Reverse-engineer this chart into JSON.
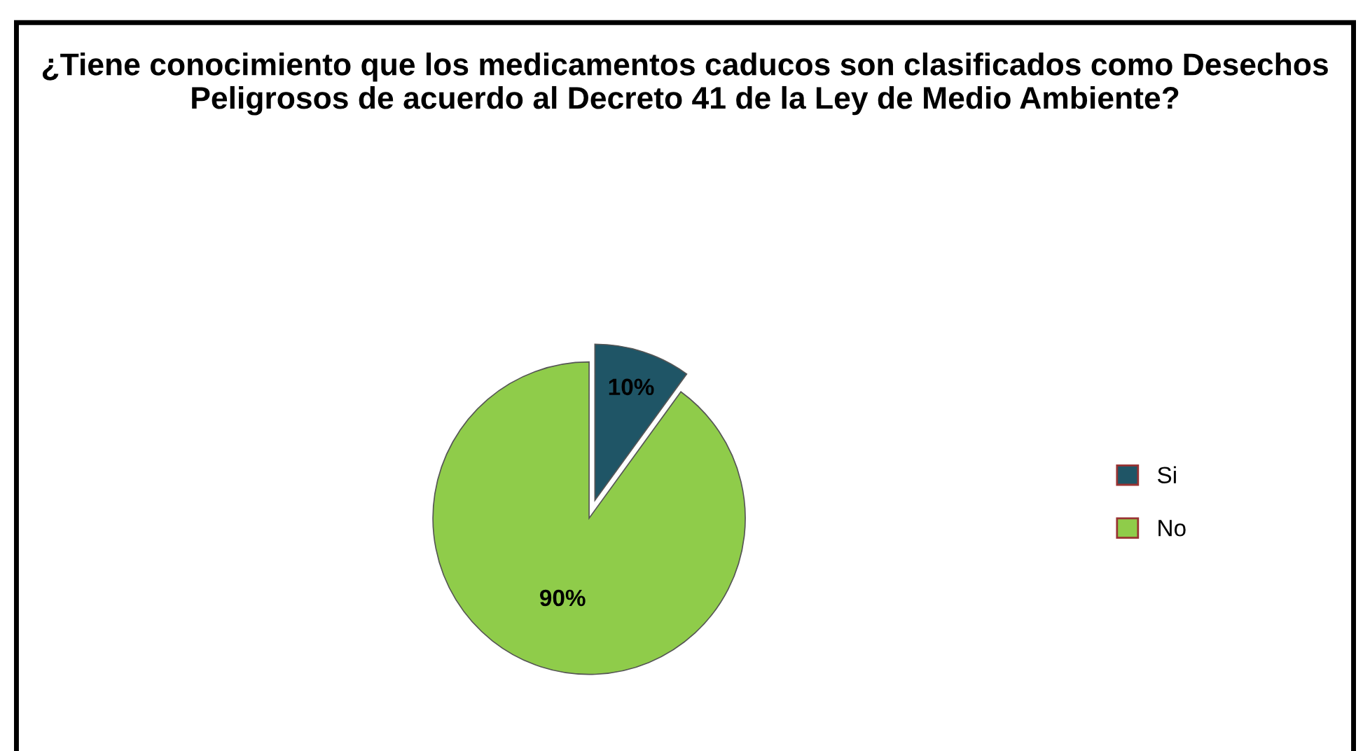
{
  "chart_data": {
    "type": "pie",
    "title": "¿Tiene conocimiento que los medicamentos caducos son clasificados como Desechos Peligrosos de acuerdo al Decreto 41 de la Ley de Medio Ambiente?",
    "categories": [
      "Si",
      "No"
    ],
    "values": [
      10,
      90
    ],
    "colors": [
      "#1f5566",
      "#8fcc4a"
    ],
    "data_labels": true,
    "value_labels": [
      "10%",
      "90%"
    ],
    "legend": "right"
  }
}
